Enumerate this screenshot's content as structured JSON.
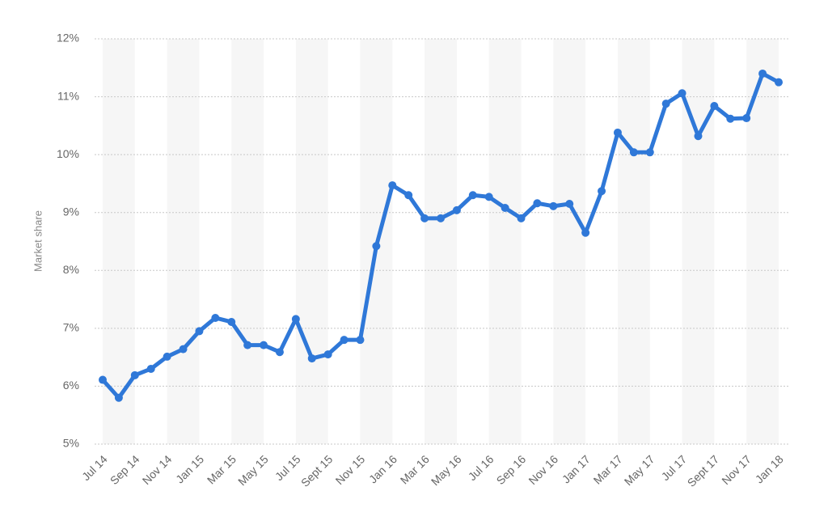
{
  "chart_data": {
    "type": "line",
    "y_label": "Market share",
    "categories": [
      "Jul 14",
      null,
      "Sep 14",
      null,
      "Nov 14",
      null,
      "Jan 15",
      null,
      "Mar 15",
      null,
      "May 15",
      null,
      "Jul 15",
      null,
      "Sept 15",
      null,
      "Nov 15",
      null,
      "Jan 16",
      null,
      "Mar 16",
      null,
      "May 16",
      null,
      "Jul 16",
      null,
      "Sep 16",
      null,
      "Nov 16",
      null,
      "Jan 17",
      null,
      "Mar 17",
      null,
      "May 17",
      null,
      "Jul 17",
      null,
      "Sept 17",
      null,
      "Nov 17",
      null,
      "Jan 18"
    ],
    "values": [
      6.11,
      5.8,
      6.19,
      6.3,
      6.51,
      6.64,
      6.95,
      7.18,
      7.11,
      6.71,
      6.71,
      6.59,
      7.16,
      6.48,
      6.55,
      6.8,
      6.8,
      8.42,
      9.47,
      9.3,
      8.9,
      8.9,
      9.04,
      9.3,
      9.27,
      9.08,
      8.9,
      9.16,
      9.11,
      9.15,
      8.65,
      9.37,
      10.38,
      10.04,
      10.04,
      10.88,
      11.06,
      10.32,
      10.84,
      10.62,
      10.63,
      11.4,
      11.25
    ],
    "color": "#2f78d8",
    "ylim": [
      5,
      12
    ],
    "yticks": [
      {
        "value": 5,
        "label": "5%"
      },
      {
        "value": 6,
        "label": "6%"
      },
      {
        "value": 7,
        "label": "7%"
      },
      {
        "value": 8,
        "label": "8%"
      },
      {
        "value": 9,
        "label": "9%"
      },
      {
        "value": 10,
        "label": "10%"
      },
      {
        "value": 11,
        "label": "11%"
      },
      {
        "value": 12,
        "label": "12%"
      }
    ],
    "grid": true
  }
}
